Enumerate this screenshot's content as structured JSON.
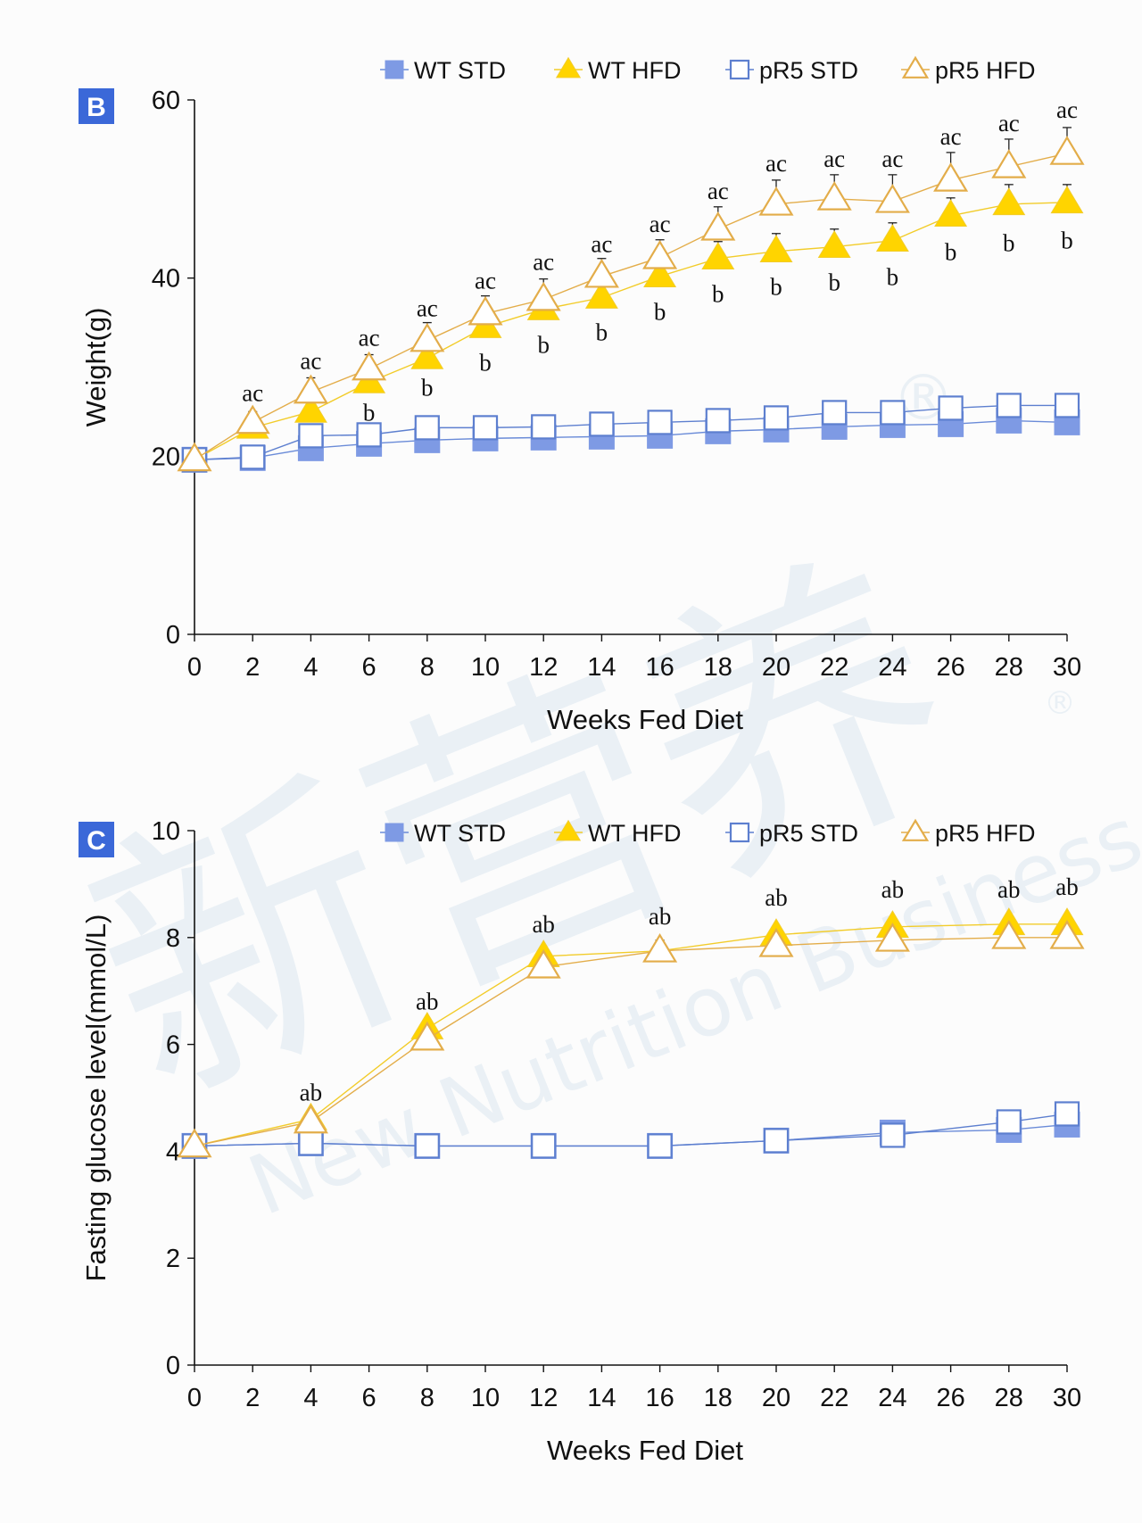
{
  "colors": {
    "wt_std": "#7e9ae4",
    "wt_std_line": "#6a8bd8",
    "wt_hfd": "#ffd400",
    "wt_hfd_line": "#f2cc2a",
    "pr5_std": "#5d7fcf",
    "pr5_hfd": "#e3ad4a",
    "panel_badge": "#3b68d8",
    "axis": "#111111"
  },
  "watermark": {
    "chinese": "新营养",
    "english": "New Nutrition Business",
    "reg": "®"
  },
  "chart_data": [
    {
      "panel": "B",
      "type": "line",
      "xlabel": "Weeks Fed Diet",
      "ylabel": "Weight(g)",
      "xlim": [
        0,
        30
      ],
      "ylim": [
        0,
        60
      ],
      "xticks": [
        0,
        2,
        4,
        6,
        8,
        10,
        12,
        14,
        16,
        18,
        20,
        22,
        24,
        26,
        28,
        30
      ],
      "yticks": [
        0,
        20,
        40,
        60
      ],
      "legend": "top",
      "grid": false,
      "series": [
        {
          "name": "WT STD",
          "marker": "square-filled",
          "x": [
            0,
            2,
            4,
            6,
            8,
            10,
            12,
            14,
            16,
            18,
            20,
            22,
            24,
            26,
            28,
            30
          ],
          "y": [
            19.6,
            19.8,
            20.9,
            21.4,
            21.8,
            22.0,
            22.1,
            22.2,
            22.3,
            22.8,
            23.0,
            23.3,
            23.5,
            23.6,
            24.0,
            23.8
          ],
          "err": [
            0,
            0,
            0,
            0,
            0,
            0,
            0,
            0,
            0,
            0,
            0,
            0,
            0,
            0,
            0,
            0
          ]
        },
        {
          "name": "WT HFD",
          "marker": "triangle-filled",
          "x": [
            0,
            2,
            4,
            6,
            8,
            10,
            12,
            14,
            16,
            18,
            20,
            22,
            24,
            26,
            28,
            30
          ],
          "y": [
            19.6,
            23.2,
            25.0,
            28.3,
            31.0,
            34.5,
            36.5,
            37.8,
            40.2,
            42.2,
            43.0,
            43.5,
            44.2,
            47.0,
            48.3,
            48.5
          ],
          "err": [
            0,
            1.0,
            1.0,
            1.4,
            1.6,
            1.5,
            1.6,
            1.6,
            1.8,
            1.9,
            2.0,
            2.0,
            2.0,
            2.0,
            2.2,
            2.0
          ]
        },
        {
          "name": "pR5 STD",
          "marker": "square-open",
          "x": [
            0,
            2,
            4,
            6,
            8,
            10,
            12,
            14,
            16,
            18,
            20,
            22,
            24,
            26,
            28,
            30
          ],
          "y": [
            19.6,
            19.9,
            22.3,
            22.4,
            23.2,
            23.2,
            23.3,
            23.6,
            23.8,
            24.0,
            24.3,
            24.9,
            24.9,
            25.4,
            25.7,
            25.7
          ],
          "err": [
            0,
            0,
            0,
            0,
            0,
            0,
            0,
            0,
            0,
            0,
            0,
            0,
            0,
            0,
            0,
            0
          ]
        },
        {
          "name": "pR5 HFD",
          "marker": "triangle-open",
          "x": [
            0,
            2,
            4,
            6,
            8,
            10,
            12,
            14,
            16,
            18,
            20,
            22,
            24,
            26,
            28,
            30
          ],
          "y": [
            19.6,
            23.8,
            27.2,
            29.8,
            33.0,
            36.0,
            37.6,
            40.2,
            42.3,
            45.5,
            48.3,
            48.9,
            48.6,
            51.0,
            52.5,
            54.0
          ],
          "err": [
            0,
            1.2,
            1.6,
            1.6,
            2.0,
            2.0,
            2.3,
            2.0,
            2.0,
            2.5,
            2.7,
            2.7,
            3.0,
            3.1,
            3.1,
            2.9
          ]
        }
      ],
      "annotations": [
        {
          "x": 2,
          "y": 26.2,
          "text": "ac"
        },
        {
          "x": 4,
          "y": 29.8,
          "text": "ac"
        },
        {
          "x": 6,
          "y": 32.4,
          "text": "ac"
        },
        {
          "x": 8,
          "y": 35.7,
          "text": "ac"
        },
        {
          "x": 10,
          "y": 38.8,
          "text": "ac"
        },
        {
          "x": 12,
          "y": 40.9,
          "text": "ac"
        },
        {
          "x": 14,
          "y": 42.9,
          "text": "ac"
        },
        {
          "x": 16,
          "y": 45.2,
          "text": "ac"
        },
        {
          "x": 18,
          "y": 48.9,
          "text": "ac"
        },
        {
          "x": 20,
          "y": 52.0,
          "text": "ac"
        },
        {
          "x": 22,
          "y": 52.5,
          "text": "ac"
        },
        {
          "x": 24,
          "y": 52.5,
          "text": "ac"
        },
        {
          "x": 26,
          "y": 55.0,
          "text": "ac"
        },
        {
          "x": 28,
          "y": 56.5,
          "text": "ac"
        },
        {
          "x": 30,
          "y": 58.0,
          "text": "ac"
        },
        {
          "x": 6,
          "y": 24.0,
          "text": "b"
        },
        {
          "x": 8,
          "y": 26.8,
          "text": "b"
        },
        {
          "x": 10,
          "y": 29.6,
          "text": "b"
        },
        {
          "x": 12,
          "y": 31.6,
          "text": "b"
        },
        {
          "x": 14,
          "y": 33.0,
          "text": "b"
        },
        {
          "x": 16,
          "y": 35.3,
          "text": "b"
        },
        {
          "x": 18,
          "y": 37.3,
          "text": "b"
        },
        {
          "x": 20,
          "y": 38.1,
          "text": "b"
        },
        {
          "x": 22,
          "y": 38.6,
          "text": "b"
        },
        {
          "x": 24,
          "y": 39.2,
          "text": "b"
        },
        {
          "x": 26,
          "y": 42.0,
          "text": "b"
        },
        {
          "x": 28,
          "y": 43.0,
          "text": "b"
        },
        {
          "x": 30,
          "y": 43.3,
          "text": "b"
        }
      ]
    },
    {
      "panel": "C",
      "type": "line",
      "xlabel": "Weeks Fed Diet",
      "ylabel": "Fasting glucose level(mmol/L)",
      "xlim": [
        0,
        30
      ],
      "ylim": [
        0,
        10
      ],
      "xticks": [
        0,
        2,
        4,
        6,
        8,
        10,
        12,
        14,
        16,
        18,
        20,
        22,
        24,
        26,
        28,
        30
      ],
      "yticks": [
        0,
        2,
        4,
        6,
        8,
        10
      ],
      "legend": "top",
      "grid": false,
      "series": [
        {
          "name": "WT STD",
          "marker": "square-filled",
          "x": [
            0,
            4,
            8,
            12,
            16,
            20,
            24,
            28,
            30
          ],
          "y": [
            4.1,
            4.15,
            4.1,
            4.1,
            4.1,
            4.2,
            4.35,
            4.4,
            4.5
          ],
          "err": [
            0,
            0,
            0,
            0,
            0,
            0,
            0,
            0,
            0
          ]
        },
        {
          "name": "WT HFD",
          "marker": "triangle-filled",
          "x": [
            0,
            4,
            8,
            12,
            16,
            20,
            24,
            28,
            30
          ],
          "y": [
            4.1,
            4.6,
            6.3,
            7.65,
            7.75,
            8.05,
            8.2,
            8.25,
            8.25
          ],
          "err": [
            0,
            0,
            0,
            0,
            0.2,
            0,
            0,
            0,
            0
          ]
        },
        {
          "name": "pR5 STD",
          "marker": "square-open",
          "x": [
            0,
            4,
            8,
            12,
            16,
            20,
            24,
            28,
            30
          ],
          "y": [
            4.1,
            4.15,
            4.1,
            4.1,
            4.1,
            4.2,
            4.3,
            4.55,
            4.7
          ],
          "err": [
            0,
            0,
            0,
            0,
            0,
            0,
            0,
            0,
            0
          ]
        },
        {
          "name": "pR5 HFD",
          "marker": "triangle-open",
          "x": [
            0,
            4,
            8,
            12,
            16,
            20,
            24,
            28,
            30
          ],
          "y": [
            4.1,
            4.55,
            6.1,
            7.45,
            7.75,
            7.85,
            7.95,
            8.0,
            8.0
          ],
          "err": [
            0,
            0,
            0.15,
            0.1,
            0.15,
            0.15,
            0.15,
            0.15,
            0.1
          ]
        }
      ],
      "annotations": [
        {
          "x": 4,
          "y": 4.95,
          "text": "ab"
        },
        {
          "x": 8,
          "y": 6.65,
          "text": "ab"
        },
        {
          "x": 12,
          "y": 8.1,
          "text": "ab"
        },
        {
          "x": 16,
          "y": 8.25,
          "text": "ab"
        },
        {
          "x": 20,
          "y": 8.6,
          "text": "ab"
        },
        {
          "x": 24,
          "y": 8.75,
          "text": "ab"
        },
        {
          "x": 28,
          "y": 8.75,
          "text": "ab"
        },
        {
          "x": 30,
          "y": 8.8,
          "text": "ab"
        }
      ]
    }
  ]
}
